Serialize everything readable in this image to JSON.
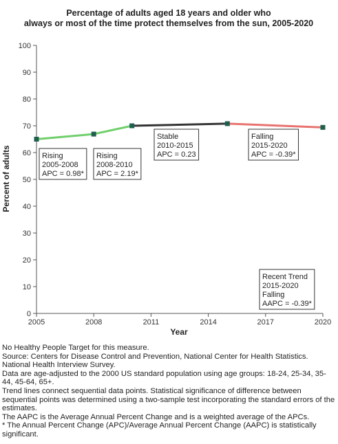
{
  "chart_data": {
    "type": "line",
    "title": "Percentage of adults aged 18 years and older who",
    "subtitle": "always or most of the time protect themselves from the sun, 2005-2020",
    "xlabel": "Year",
    "ylabel": "Percent of adults",
    "xlim": [
      2005,
      2020
    ],
    "ylim": [
      0,
      100
    ],
    "x_ticks": [
      "2005",
      "2008",
      "2011",
      "2014",
      "2017",
      "2020"
    ],
    "y_ticks": [
      "0",
      "10",
      "20",
      "30",
      "40",
      "50",
      "60",
      "70",
      "80",
      "90",
      "100"
    ],
    "points": [
      {
        "x": 2005,
        "y": 65.0
      },
      {
        "x": 2008,
        "y": 66.9
      },
      {
        "x": 2010,
        "y": 70.0
      },
      {
        "x": 2015,
        "y": 70.8
      },
      {
        "x": 2020,
        "y": 69.4
      }
    ],
    "segments": [
      {
        "from": 0,
        "to": 1,
        "trend": "Rising",
        "color": "#6fcf6a"
      },
      {
        "from": 1,
        "to": 2,
        "trend": "Rising",
        "color": "#6fcf6a"
      },
      {
        "from": 2,
        "to": 3,
        "trend": "Stable",
        "color": "#333333"
      },
      {
        "from": 3,
        "to": 4,
        "trend": "Falling",
        "color": "#e8736f"
      }
    ],
    "annotations": [
      {
        "lines": [
          "Rising",
          "2005-2008",
          "APC =  0.98*"
        ]
      },
      {
        "lines": [
          "Rising",
          "2008-2010",
          "APC =  2.19*"
        ]
      },
      {
        "lines": [
          "Stable",
          "2010-2015",
          "APC =  0.23"
        ]
      },
      {
        "lines": [
          "Falling",
          "2015-2020",
          "APC = -0.39*"
        ]
      },
      {
        "lines": [
          "Recent Trend",
          "2015-2020",
          "Falling",
          "AAPC = -0.39*"
        ]
      }
    ],
    "marker_color": "#1f5f4f",
    "grid": false
  },
  "footnotes": [
    "No Healthy People Target for this measure.",
    "Source: Centers for Disease Control and Prevention, National Center for Health Statistics. National Health Interview Survey.",
    "Data are age-adjusted to the 2000 US standard population using age groups: 18-24, 25-34, 35-44, 45-64, 65+.",
    "Trend lines connect sequential data points. Statistical significance of difference between sequential points was determined using a two-sample test incorporating the standard errors of the estimates.",
    "The AAPC is the Average Annual Percent Change and is a weighted average of the APCs.",
    "* The Annual Percent Change (APC)/Average Annual Percent Change (AAPC) is statistically significant."
  ]
}
